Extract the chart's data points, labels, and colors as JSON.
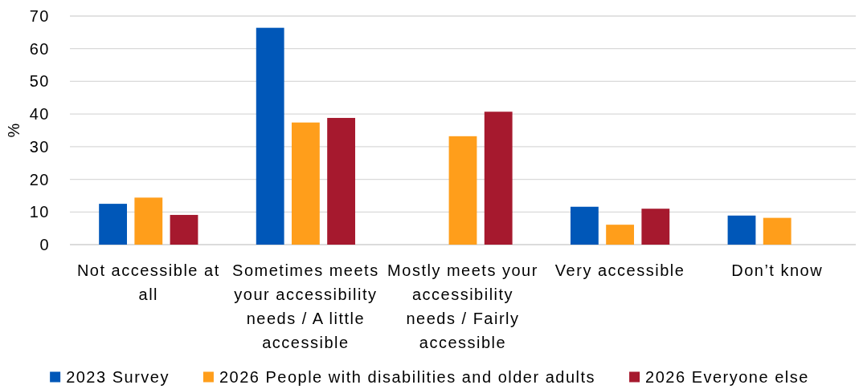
{
  "chart_data": {
    "type": "bar",
    "categories": [
      "Not accessible at all",
      "Sometimes meets your accessibility needs / A little accessible",
      "Mostly meets your accessibility needs / Fairly accessible",
      "Very accessible",
      "Don’t know"
    ],
    "series": [
      {
        "name": "2023 Survey",
        "color": "#0057b8",
        "values": [
          12.5,
          66.4,
          null,
          11.6,
          8.9
        ]
      },
      {
        "name": "2026 People with disabilities and older adults",
        "color": "#ff9e1b",
        "values": [
          14.4,
          37.4,
          33.2,
          6.1,
          8.2
        ]
      },
      {
        "name": "2026 Everyone else",
        "color": "#a6192e",
        "values": [
          9.1,
          38.8,
          40.7,
          11.0,
          null
        ]
      }
    ],
    "ylabel": "%",
    "ylim": [
      0,
      70
    ],
    "yticks": [
      0,
      10,
      20,
      30,
      40,
      50,
      60,
      70
    ],
    "grid": "y",
    "legend": "bottom"
  }
}
